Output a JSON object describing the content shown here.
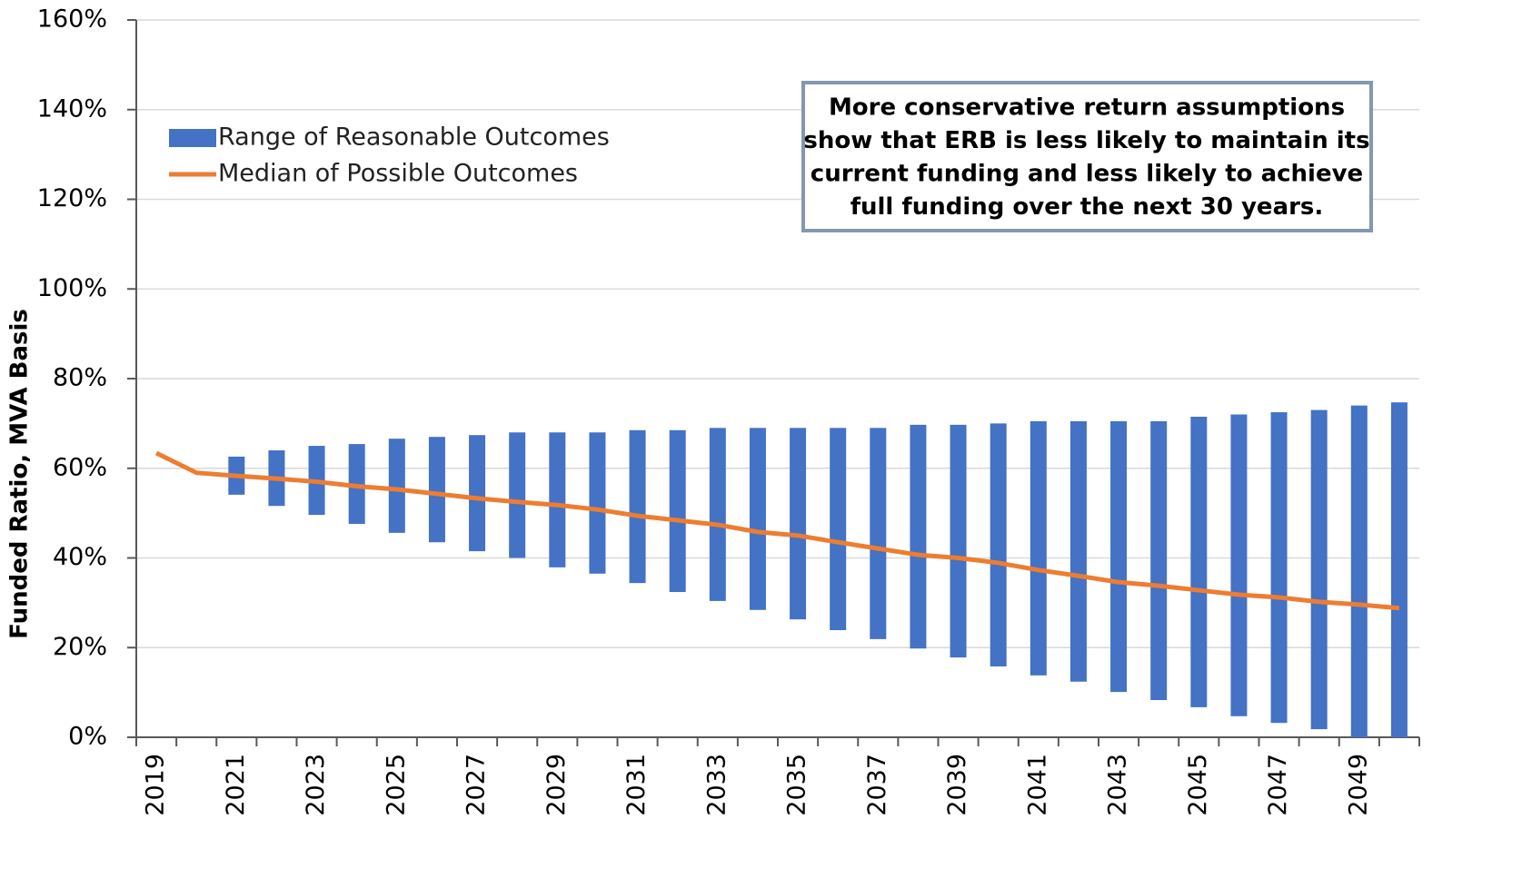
{
  "chart_data": {
    "type": "bar",
    "y_label": "Funded Ratio, MVA Basis",
    "annotation": [
      "More conservative return assumptions",
      "show that ERB is less likely to maintain its",
      "current funding and less likely to achieve",
      "full funding over the next 30 years."
    ],
    "categories": [
      "2019",
      null,
      "2021",
      null,
      "2023",
      null,
      "2025",
      null,
      "2027",
      null,
      "2029",
      null,
      "2031",
      null,
      "2033",
      null,
      "2035",
      null,
      "2037",
      null,
      "2039",
      null,
      "2041",
      null,
      "2043",
      null,
      "2045",
      null,
      "2047",
      null,
      "2049",
      null
    ],
    "series": [
      {
        "name": "Range of Reasonable Outcomes",
        "type": "range-bar",
        "color": "#4472c4",
        "low": [
          null,
          null,
          54.1,
          51.6,
          49.6,
          47.6,
          45.6,
          43.5,
          41.5,
          40,
          37.9,
          36.5,
          34.4,
          32.4,
          30.4,
          28.4,
          26.3,
          23.9,
          21.9,
          19.8,
          17.8,
          15.8,
          13.8,
          12.4,
          10.1,
          8.3,
          6.7,
          4.7,
          3.2,
          1.8,
          0,
          0
        ],
        "high": [
          null,
          null,
          62.6,
          64,
          65,
          65.4,
          66.6,
          67,
          67.4,
          68,
          68,
          68,
          68.5,
          68.5,
          69,
          69,
          69,
          69,
          69,
          69.7,
          69.7,
          70,
          70.5,
          70.5,
          70.5,
          70.5,
          71.5,
          72,
          72.5,
          73,
          74,
          74.7
        ]
      },
      {
        "name": "Median of Possible Outcomes",
        "type": "line",
        "color": "#ed7d31",
        "values": [
          63.4,
          59,
          58.3,
          57.7,
          57,
          56,
          55.3,
          54.3,
          53.3,
          52.5,
          51.8,
          50.8,
          49.4,
          48.4,
          47.4,
          45.8,
          45,
          43.5,
          42.1,
          40.7,
          40,
          38.9,
          37.3,
          36,
          34.6,
          33.8,
          32.8,
          31.8,
          31.2,
          30.2,
          29.6,
          28.8
        ]
      }
    ],
    "ylim": [
      0,
      160
    ],
    "yticks": [
      {
        "value": 0,
        "label": "0%"
      },
      {
        "value": 20,
        "label": "20%"
      },
      {
        "value": 40,
        "label": "40%"
      },
      {
        "value": 60,
        "label": "60%"
      },
      {
        "value": 80,
        "label": "80%"
      },
      {
        "value": 100,
        "label": "100%"
      },
      {
        "value": 120,
        "label": "120%"
      },
      {
        "value": 140,
        "label": "140%"
      },
      {
        "value": 160,
        "label": "160%"
      }
    ],
    "grid": true
  }
}
